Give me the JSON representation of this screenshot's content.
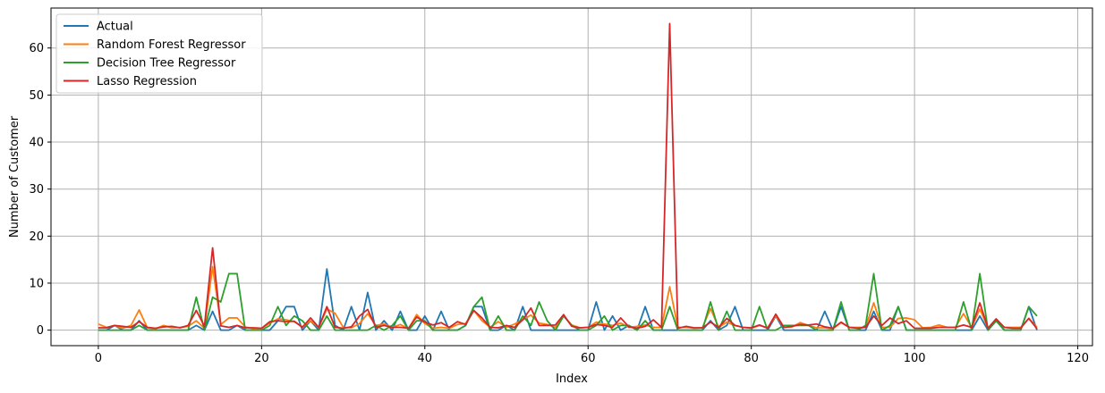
{
  "chart_data": {
    "type": "line",
    "xlabel": "Index",
    "ylabel": "Number of Customer",
    "xlim": [
      -5.8,
      121.8
    ],
    "ylim": [
      -3.3,
      68.5
    ],
    "xticks": [
      0,
      20,
      40,
      60,
      80,
      100,
      120
    ],
    "yticks": [
      0,
      10,
      20,
      30,
      40,
      50,
      60
    ],
    "grid": true,
    "legend_position": "top-left",
    "x": [
      0,
      1,
      2,
      3,
      4,
      5,
      6,
      7,
      8,
      9,
      10,
      11,
      12,
      13,
      14,
      15,
      16,
      17,
      18,
      19,
      20,
      21,
      22,
      23,
      24,
      25,
      26,
      27,
      28,
      29,
      30,
      31,
      32,
      33,
      34,
      35,
      36,
      37,
      38,
      39,
      40,
      41,
      42,
      43,
      44,
      45,
      46,
      47,
      48,
      49,
      50,
      51,
      52,
      53,
      54,
      55,
      56,
      57,
      58,
      59,
      60,
      61,
      62,
      63,
      64,
      65,
      66,
      67,
      68,
      69,
      70,
      71,
      72,
      73,
      74,
      75,
      76,
      77,
      78,
      79,
      80,
      81,
      82,
      83,
      84,
      85,
      86,
      87,
      88,
      89,
      90,
      91,
      92,
      93,
      94,
      95,
      96,
      97,
      98,
      99,
      100,
      101,
      102,
      103,
      104,
      105,
      106,
      107,
      108,
      109,
      110,
      111,
      112,
      113,
      114,
      115
    ],
    "series": [
      {
        "name": "Actual",
        "color": "#1f77b4",
        "values": [
          0,
          0,
          1,
          0,
          0,
          2,
          0,
          0,
          0,
          0,
          0,
          0,
          1,
          0,
          4,
          0,
          0,
          1,
          0,
          0,
          0,
          0,
          2,
          5,
          5,
          0,
          2,
          0,
          13,
          1,
          0,
          5,
          0,
          8,
          0,
          2,
          0,
          4,
          0,
          0,
          3,
          0,
          4,
          0,
          0,
          1,
          5,
          5,
          0,
          0,
          1,
          0,
          5,
          0,
          0,
          0,
          0,
          0,
          0,
          0,
          0,
          6,
          0,
          3,
          0,
          1,
          0,
          5,
          0,
          0,
          0,
          0,
          0,
          0,
          0,
          2,
          0,
          1,
          5,
          0,
          0,
          0,
          0,
          3,
          0,
          0,
          0,
          0,
          0,
          4,
          0,
          5,
          0,
          0,
          0,
          4,
          0,
          0,
          5,
          0,
          0,
          0,
          0,
          0,
          0,
          0,
          0,
          0,
          3,
          0,
          2,
          0,
          0,
          0,
          5,
          0
        ]
      },
      {
        "name": "Random Forest Regressor",
        "color": "#ff7f0e",
        "values": [
          1.3,
          0.6,
          1.0,
          0.4,
          1.0,
          4.3,
          0.5,
          0.3,
          1.0,
          0.5,
          0.6,
          0.8,
          2.0,
          0.4,
          13.5,
          1.2,
          2.6,
          2.6,
          0.7,
          0.3,
          0.4,
          1.5,
          2.4,
          2.2,
          1.8,
          0.7,
          2.0,
          0.6,
          4.5,
          3.6,
          0.6,
          0.5,
          1.4,
          3.5,
          1.0,
          1.3,
          0.6,
          1.2,
          0.3,
          3.3,
          1.4,
          0.4,
          0.6,
          0.4,
          1.2,
          1.4,
          4.2,
          2.0,
          0.6,
          1.8,
          0.6,
          1.3,
          2.2,
          3.2,
          1.5,
          1.2,
          0.6,
          3.0,
          1.1,
          0.5,
          0.6,
          1.7,
          1.3,
          1.0,
          1.5,
          0.6,
          0.8,
          1.1,
          0.6,
          0.6,
          9.2,
          0.6,
          0.6,
          0.4,
          0.5,
          4.6,
          0.6,
          1.7,
          1.0,
          0.6,
          0.4,
          1.0,
          0.5,
          3.1,
          0.6,
          0.7,
          1.6,
          1.0,
          0.5,
          0.5,
          0.3,
          1.6,
          0.6,
          0.6,
          0.6,
          5.8,
          0.6,
          0.6,
          2.5,
          2.6,
          2.2,
          0.5,
          0.6,
          1.1,
          0.6,
          0.6,
          3.5,
          0.6,
          4.5,
          0.4,
          2.3,
          0.6,
          0.6,
          0.6,
          2.5,
          0.6
        ]
      },
      {
        "name": "Decision Tree Regressor",
        "color": "#2ca02c",
        "values": [
          0,
          0,
          0,
          0,
          0,
          1,
          0,
          0,
          0,
          0,
          0,
          0,
          7,
          0,
          7,
          6,
          12,
          12,
          0,
          0,
          0,
          1,
          5,
          1,
          3,
          2,
          0,
          0,
          3,
          0,
          0,
          0,
          0,
          0,
          1,
          0,
          1,
          3,
          0,
          2,
          2,
          0,
          0,
          0,
          0,
          1,
          5,
          7,
          0,
          3,
          0,
          0,
          3,
          1,
          6,
          2,
          0,
          3,
          1,
          0,
          0,
          1,
          3,
          0,
          1,
          1,
          0,
          2,
          0,
          0,
          5,
          0,
          0,
          0,
          0,
          6,
          0,
          4,
          0,
          0,
          0,
          5,
          0,
          0,
          1,
          1,
          1,
          1,
          0,
          0,
          0,
          6,
          0,
          0,
          1,
          12,
          0,
          1,
          5,
          0,
          0,
          0,
          0,
          0,
          0,
          0,
          6,
          0,
          12,
          0,
          2,
          0,
          0,
          0,
          5,
          3
        ]
      },
      {
        "name": "Lasso Regression",
        "color": "#d62728",
        "values": [
          0.5,
          0.5,
          1.0,
          0.8,
          0.6,
          1.8,
          0.6,
          0.4,
          0.7,
          0.8,
          0.5,
          1.0,
          4.2,
          0.8,
          17.5,
          0.9,
          0.6,
          1.0,
          0.5,
          0.5,
          0.4,
          1.8,
          2.0,
          1.8,
          1.9,
          0.6,
          2.6,
          0.6,
          5.0,
          0.6,
          0.4,
          0.7,
          3.0,
          4.4,
          0.6,
          1.0,
          0.6,
          0.6,
          0.4,
          2.8,
          1.7,
          1.1,
          1.6,
          0.6,
          1.8,
          1.2,
          4.2,
          2.6,
          0.6,
          0.5,
          1.0,
          0.6,
          2.2,
          4.7,
          1.0,
          1.0,
          1.1,
          3.3,
          0.8,
          0.5,
          0.6,
          1.2,
          1.0,
          0.6,
          2.6,
          0.7,
          0.4,
          0.8,
          2.2,
          0.6,
          65.2,
          0.4,
          0.8,
          0.5,
          0.5,
          1.7,
          0.6,
          2.5,
          1.0,
          0.6,
          0.5,
          1.1,
          0.4,
          3.4,
          0.6,
          0.8,
          1.2,
          1.1,
          1.3,
          0.7,
          0.4,
          1.7,
          0.6,
          0.4,
          0.6,
          3.0,
          1.0,
          2.6,
          1.4,
          2.0,
          0.4,
          0.4,
          0.4,
          0.6,
          0.6,
          0.6,
          1.1,
          0.6,
          5.8,
          0.4,
          2.4,
          0.6,
          0.4,
          0.4,
          2.5,
          0.3
        ]
      }
    ]
  }
}
